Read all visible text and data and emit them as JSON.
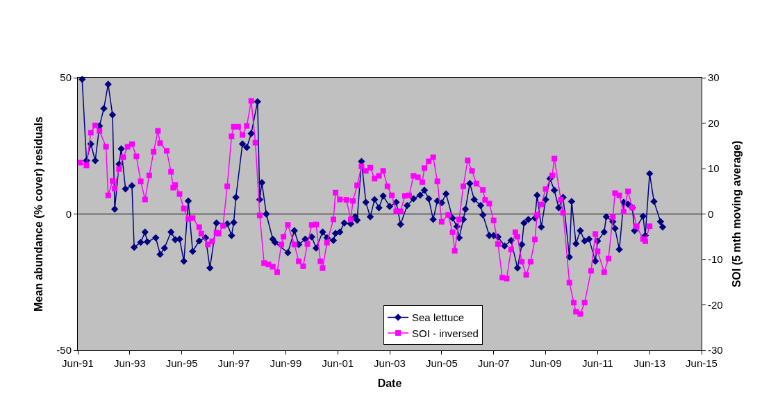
{
  "chart_data": {
    "type": "line",
    "xlabel": "Date",
    "ylabel": "Mean abundance (% cover) residuals",
    "y2label": "SOI (5 mth moving average)",
    "xlim": [
      "1991-06",
      "2015-06"
    ],
    "xticks": [
      {
        "value": "1991-06",
        "label": "Jun-91"
      },
      {
        "value": "1993-06",
        "label": "Jun-93"
      },
      {
        "value": "1995-06",
        "label": "Jun-95"
      },
      {
        "value": "1997-06",
        "label": "Jun-97"
      },
      {
        "value": "1999-06",
        "label": "Jun-99"
      },
      {
        "value": "2001-06",
        "label": "Jun-01"
      },
      {
        "value": "2003-06",
        "label": "Jun-03"
      },
      {
        "value": "2005-06",
        "label": "Jun-05"
      },
      {
        "value": "2007-06",
        "label": "Jun-07"
      },
      {
        "value": "2009-06",
        "label": "Jun-09"
      },
      {
        "value": "2011-06",
        "label": "Jun-11"
      },
      {
        "value": "2013-06",
        "label": "Jun-13"
      },
      {
        "value": "2015-06",
        "label": "Jun-15"
      }
    ],
    "ylim": [
      -50,
      50
    ],
    "yticks": [
      -50,
      0,
      50
    ],
    "y2lim": [
      -30,
      30
    ],
    "y2ticks": [
      -30,
      -20,
      -10,
      0,
      10,
      20,
      30
    ],
    "ref_lines": [
      {
        "axis": "y",
        "value": 0,
        "color": "#000000",
        "line_style": "solid"
      }
    ],
    "grid": false,
    "legend": "bottom",
    "line_style": "solid",
    "series": [
      {
        "name": "Sea lettuce",
        "color": "#000080",
        "marker": "diamond",
        "x": [
          "1991-08",
          "1991-10",
          "1991-12",
          "1992-02",
          "1992-04",
          "1992-06",
          "1992-08",
          "1992-10",
          "1992-11",
          "1993-01",
          "1993-02",
          "1993-04",
          "1993-07",
          "1993-08",
          "1993-11",
          "1994-01",
          "1994-02",
          "1994-06",
          "1994-08",
          "1994-10",
          "1995-01",
          "1995-03",
          "1995-05",
          "1995-07",
          "1995-09",
          "1995-11",
          "1996-02",
          "1996-05",
          "1996-07",
          "1996-10",
          "1997-03",
          "1997-05",
          "1997-06",
          "1997-07",
          "1997-10",
          "1997-12",
          "1998-02",
          "1998-05",
          "1998-06",
          "1998-07",
          "1998-09",
          "1998-12",
          "1999-01",
          "1999-07",
          "1999-10",
          "1999-12",
          "2000-03",
          "2000-06",
          "2000-08",
          "2000-11",
          "2001-01",
          "2001-04",
          "2001-05",
          "2001-07",
          "2001-09",
          "2001-12",
          "2002-02",
          "2002-03",
          "2002-05",
          "2002-07",
          "2002-09",
          "2002-11",
          "2003-01",
          "2003-03",
          "2003-06",
          "2003-09",
          "2003-11",
          "2004-02",
          "2004-05",
          "2004-08",
          "2004-10",
          "2004-12",
          "2005-02",
          "2005-04",
          "2005-06",
          "2005-08",
          "2005-11",
          "2006-01",
          "2006-02",
          "2006-04",
          "2006-05",
          "2006-07",
          "2006-09",
          "2006-12",
          "2007-01",
          "2007-04",
          "2007-06",
          "2007-08",
          "2007-11",
          "2008-02",
          "2008-05",
          "2008-07",
          "2008-08",
          "2008-10",
          "2009-01",
          "2009-02",
          "2009-04",
          "2009-06",
          "2009-08",
          "2009-10",
          "2009-12",
          "2010-02",
          "2010-05",
          "2010-06",
          "2010-08",
          "2010-10",
          "2010-12",
          "2011-02",
          "2011-05",
          "2011-06",
          "2011-09",
          "2011-10",
          "2012-01",
          "2012-02",
          "2012-04",
          "2012-06",
          "2012-08",
          "2012-10",
          "2012-11",
          "2013-03",
          "2013-04",
          "2013-06",
          "2013-08",
          "2013-11",
          "2013-12"
        ],
        "values": [
          49.4,
          19.6,
          25.7,
          19.6,
          32.3,
          38.7,
          47.6,
          36.4,
          1.8,
          18.3,
          23.9,
          9.2,
          10.4,
          -12.2,
          -10.4,
          -6.6,
          -10.2,
          -8.7,
          -14.8,
          -12.5,
          -6.6,
          -9.4,
          -9.2,
          -17.3,
          4.8,
          -13.7,
          -9.9,
          -8.7,
          -19.8,
          -3.3,
          -3.6,
          -7.9,
          -3.1,
          6.1,
          25.7,
          24.4,
          29.5,
          41.2,
          5.3,
          11.5,
          0,
          -9.2,
          -10.4,
          -14.2,
          -6.1,
          -11.2,
          -9.2,
          -8.4,
          -12.5,
          -6.6,
          -8.7,
          -9.7,
          -7.1,
          -6.6,
          -3.3,
          -3.6,
          -1.0,
          -2.3,
          19.3,
          4.3,
          -1.0,
          5.3,
          2.3,
          6.6,
          2.8,
          4.3,
          -3.8,
          3.1,
          5.6,
          6.9,
          8.7,
          5.6,
          -2.0,
          4.8,
          4.1,
          7.4,
          -1.5,
          -4.6,
          -8.7,
          -2.0,
          1.8,
          11.2,
          5.3,
          3.1,
          -0.3,
          -7.9,
          -7.9,
          -8.4,
          -11.7,
          -9.7,
          -19.8,
          -11.2,
          -3.3,
          -2.0,
          -1.5,
          6.9,
          -4.8,
          5.3,
          13.0,
          8.7,
          2.3,
          6.1,
          -15.8,
          4.6,
          -10.9,
          -6.1,
          -9.9,
          -9.2,
          -17.3,
          -9.9,
          -6.6,
          -1.0,
          -2.8,
          -5.3,
          -13.0,
          4.3,
          3.6,
          2.3,
          -6.1,
          -0.8,
          -7.9,
          14.8,
          4.6,
          -2.8,
          -4.8
        ]
      },
      {
        "name": "SOI - inversed",
        "color": "#ff00ff",
        "marker": "square",
        "axis": "y2",
        "x": [
          "1991-07",
          "1991-10",
          "1991-12",
          "1992-02",
          "1992-04",
          "1992-07",
          "1992-08",
          "1992-10",
          "1992-11",
          "1993-01",
          "1993-03",
          "1993-05",
          "1993-07",
          "1993-09",
          "1993-11",
          "1994-01",
          "1994-03",
          "1994-05",
          "1994-07",
          "1994-08",
          "1994-11",
          "1995-01",
          "1995-02",
          "1995-03",
          "1995-05",
          "1995-07",
          "1995-09",
          "1995-11",
          "1996-02",
          "1996-03",
          "1996-06",
          "1996-08",
          "1996-10",
          "1996-11",
          "1997-01",
          "1997-03",
          "1997-05",
          "1997-06",
          "1997-08",
          "1997-10",
          "1997-12",
          "1998-02",
          "1998-04",
          "1998-06",
          "1998-08",
          "1998-10",
          "1998-12",
          "1999-02",
          "1999-04",
          "1999-05",
          "1999-07",
          "1999-10",
          "1999-12",
          "2000-02",
          "2000-04",
          "2000-06",
          "2000-08",
          "2000-10",
          "2000-11",
          "2001-01",
          "2001-04",
          "2001-05",
          "2001-07",
          "2001-10",
          "2001-12",
          "2002-01",
          "2002-03",
          "2002-05",
          "2002-07",
          "2002-09",
          "2002-11",
          "2003-01",
          "2003-03",
          "2003-05",
          "2003-07",
          "2003-09",
          "2003-11",
          "2004-01",
          "2004-03",
          "2004-05",
          "2004-07",
          "2004-09",
          "2004-10",
          "2004-12",
          "2005-02",
          "2005-04",
          "2005-06",
          "2005-09",
          "2005-11",
          "2005-12",
          "2006-02",
          "2006-04",
          "2006-06",
          "2006-08",
          "2006-10",
          "2007-01",
          "2007-02",
          "2007-04",
          "2007-06",
          "2007-08",
          "2007-10",
          "2007-12",
          "2008-02",
          "2008-04",
          "2008-05",
          "2008-07",
          "2008-09",
          "2008-11",
          "2009-01",
          "2009-02",
          "2009-04",
          "2009-06",
          "2009-09",
          "2009-10",
          "2010-01",
          "2010-02",
          "2010-05",
          "2010-07",
          "2010-08",
          "2010-10",
          "2010-12",
          "2011-03",
          "2011-05",
          "2011-06",
          "2011-09",
          "2011-11",
          "2012-01",
          "2012-02",
          "2012-04",
          "2012-06",
          "2012-08",
          "2012-10",
          "2012-12",
          "2013-03",
          "2013-04",
          "2013-06"
        ],
        "values": [
          11.3,
          10.7,
          17.9,
          19.5,
          18.3,
          14.8,
          4.1,
          7.3,
          5.6,
          9.9,
          12.5,
          14.8,
          15.4,
          12.7,
          7.2,
          3.2,
          8.5,
          13.7,
          18.3,
          15.6,
          13.9,
          9.3,
          5.8,
          6.4,
          4.4,
          1.2,
          -1.1,
          -0.9,
          -2.9,
          -4.3,
          -6.7,
          -6.0,
          -4.1,
          -4.3,
          -2.6,
          6.1,
          17.1,
          19.2,
          19.2,
          17.4,
          19.4,
          24.9,
          15.7,
          -0.3,
          -10.8,
          -11.1,
          -11.6,
          -12.8,
          -6.7,
          -5.0,
          -2.4,
          -6.7,
          -10.4,
          -11.5,
          -6.6,
          -2.4,
          -2.3,
          -10.4,
          -11.9,
          -6.3,
          -1.2,
          4.7,
          3.2,
          3.1,
          -1.2,
          2.9,
          6.3,
          10.5,
          9.5,
          10.2,
          7.8,
          8.4,
          9.5,
          6.1,
          4.1,
          0.6,
          0.6,
          4.0,
          4.1,
          8.4,
          8.1,
          7.0,
          10.1,
          11.6,
          12.5,
          7.2,
          -1.7,
          -0.2,
          -4.0,
          -8.1,
          -1.2,
          6.1,
          11.8,
          9.5,
          6.7,
          5.3,
          3.1,
          2.3,
          -1.4,
          -6.6,
          -14.0,
          -14.2,
          -7.8,
          -4.0,
          -5.0,
          -10.5,
          -13.4,
          -10.5,
          -5.6,
          -0.2,
          2.1,
          5.5,
          8.5,
          12.2,
          3.1,
          0.3,
          -15.1,
          -19.5,
          -21.5,
          -22.0,
          -19.5,
          -12.5,
          -4.4,
          -8.2,
          -12.8,
          -9.8,
          -0.6,
          4.6,
          4.1,
          0.5,
          5.0,
          1.4,
          -2.7,
          -5.5,
          -6.0,
          -2.7
        ]
      }
    ]
  }
}
